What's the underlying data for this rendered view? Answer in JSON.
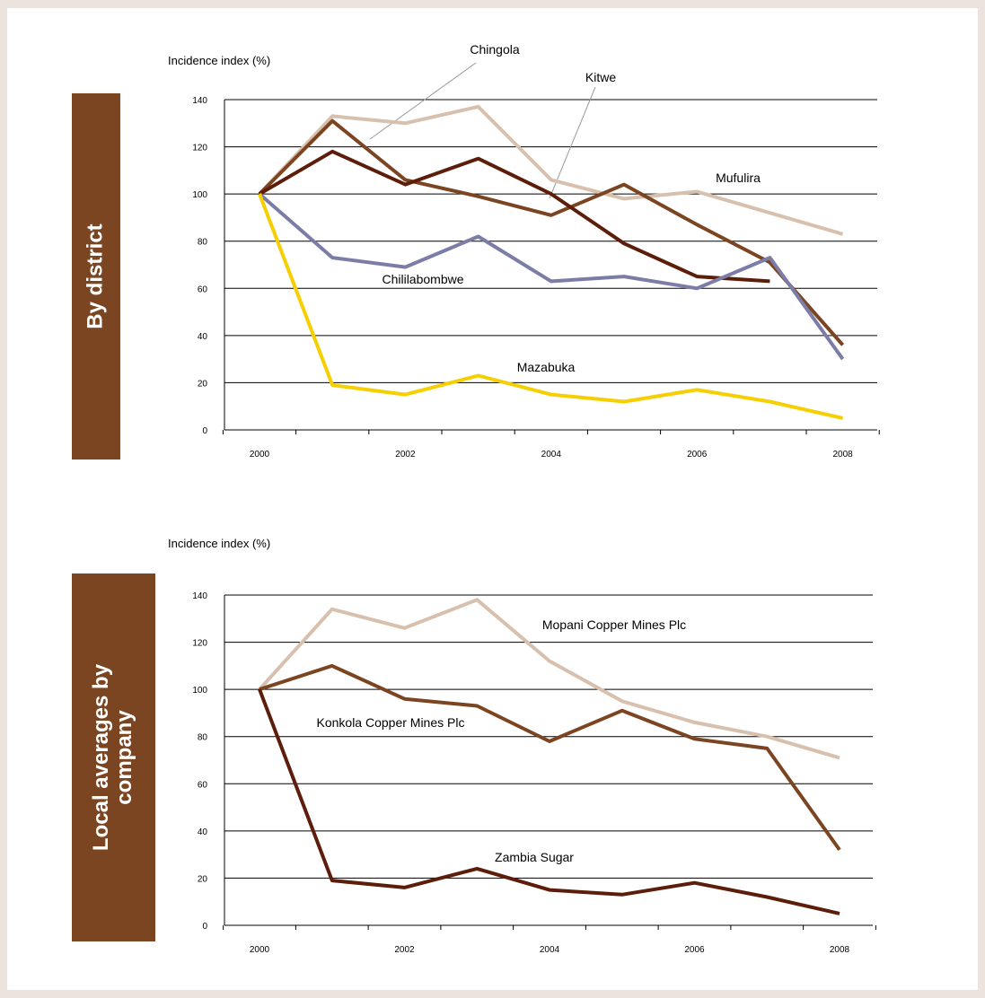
{
  "side_labels": {
    "district": "By district",
    "company_line1": "Local averages by",
    "company_line2": "company"
  },
  "chart_data": [
    {
      "type": "line",
      "ylabel": "Incidence index (%)",
      "ylim": [
        0,
        140
      ],
      "yticks": [
        0,
        20,
        40,
        60,
        80,
        100,
        120,
        140
      ],
      "x": [
        2000,
        2001,
        2002,
        2003,
        2004,
        2005,
        2006,
        2007,
        2008
      ],
      "xtick_labels": [
        "2000",
        "2002",
        "2004",
        "2006",
        "2008"
      ],
      "grid": "horizontal",
      "series": [
        {
          "name": "Chingola",
          "color": "#d8c0ae",
          "values": [
            100,
            133,
            130,
            137,
            106,
            98,
            101,
            92,
            83
          ]
        },
        {
          "name": "Mufulira",
          "color": "#7b4522",
          "values": [
            100,
            131,
            106,
            99,
            91,
            104,
            87,
            71,
            36
          ]
        },
        {
          "name": "Kitwe",
          "color": "#5c1e0a",
          "values": [
            100,
            118,
            104,
            115,
            100,
            79,
            65,
            63,
            null
          ]
        },
        {
          "name": "Chililabombwe",
          "color": "#7b7da6",
          "values": [
            100,
            73,
            69,
            82,
            63,
            65,
            60,
            73,
            30
          ]
        },
        {
          "name": "Mazabuka",
          "color": "#f5cf00",
          "values": [
            100,
            19,
            15,
            23,
            15,
            12,
            17,
            12,
            5
          ]
        }
      ]
    },
    {
      "type": "line",
      "ylabel": "Incidence index (%)",
      "ylim": [
        0,
        140
      ],
      "yticks": [
        0,
        20,
        40,
        60,
        80,
        100,
        120,
        140
      ],
      "x": [
        2000,
        2001,
        2002,
        2003,
        2004,
        2005,
        2006,
        2007,
        2008
      ],
      "xtick_labels": [
        "2000",
        "2002",
        "2004",
        "2006",
        "2008"
      ],
      "grid": "horizontal",
      "series": [
        {
          "name": "Mopani Copper Mines Plc",
          "color": "#d8c0ae",
          "values": [
            100,
            134,
            126,
            138,
            112,
            95,
            86,
            80,
            71
          ]
        },
        {
          "name": "Konkola Copper Mines Plc",
          "color": "#7b4522",
          "values": [
            100,
            110,
            96,
            93,
            78,
            91,
            79,
            75,
            32
          ]
        },
        {
          "name": "Zambia Sugar",
          "color": "#5c1e0a",
          "values": [
            100,
            19,
            16,
            24,
            15,
            13,
            18,
            12,
            5
          ]
        }
      ]
    }
  ]
}
